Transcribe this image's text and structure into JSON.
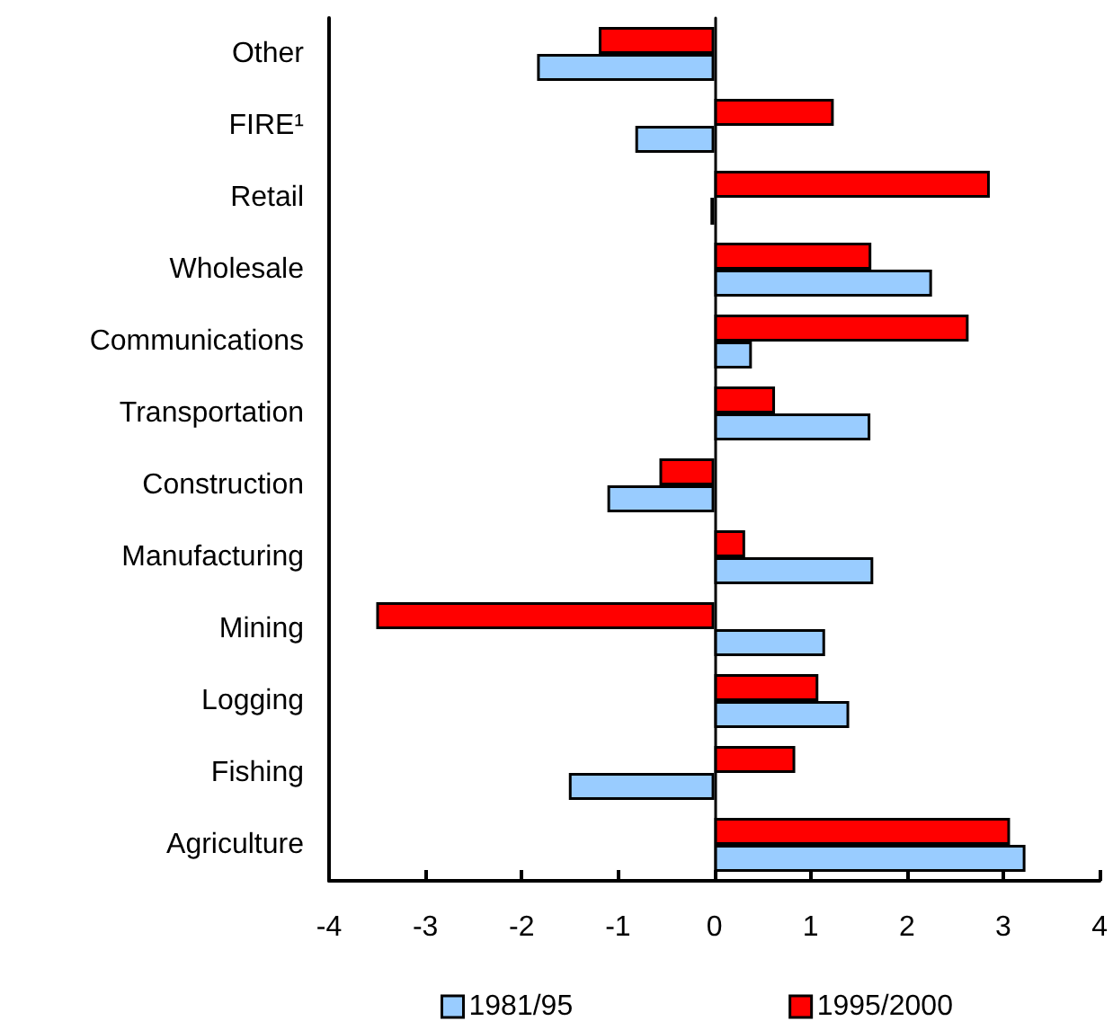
{
  "chart_data": {
    "type": "bar",
    "orientation": "horizontal",
    "categories": [
      "Other",
      "FIRE¹",
      "Retail",
      "Wholesale",
      "Communications",
      "Transportation",
      "Construction",
      "Manufacturing",
      "Mining",
      "Logging",
      "Fishing",
      "Agriculture"
    ],
    "series": [
      {
        "name": "1981/95",
        "color": "#99ccff",
        "values": [
          -1.84,
          -0.82,
          -0.04,
          2.26,
          0.39,
          1.62,
          -1.11,
          1.65,
          1.15,
          1.4,
          -1.51,
          3.23
        ]
      },
      {
        "name": "1995/2000",
        "color": "#ff0000",
        "values": [
          -1.2,
          1.24,
          2.86,
          1.63,
          2.64,
          0.63,
          -0.57,
          0.32,
          -3.51,
          1.08,
          0.84,
          3.07
        ]
      }
    ],
    "xlim": [
      -4,
      4
    ],
    "xticks": [
      -4,
      -3,
      -2,
      -1,
      0,
      1,
      2,
      3,
      4
    ],
    "legend": "bottom"
  }
}
